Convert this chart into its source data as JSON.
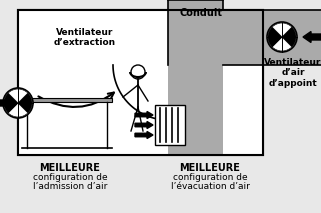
{
  "bg_color": "#e8e8e8",
  "room_color": "#ffffff",
  "duct_color": "#aaaaaa",
  "border_color": "#000000",
  "text_color": "#000000",
  "title": "Conduit",
  "label_extractor": "Ventilateur\nd’extraction",
  "label_supply": "Ventilateur\nd’air\nd’appoint",
  "label_left_top": "MEILLEURE",
  "label_left_mid": "configuration de",
  "label_left_bot": "l’admission d’air",
  "label_right_top": "MEILLEURE",
  "label_right_mid": "configuration de",
  "label_right_bot": "l’évacuation d’air",
  "figsize": [
    3.21,
    2.13
  ],
  "dpi": 100
}
